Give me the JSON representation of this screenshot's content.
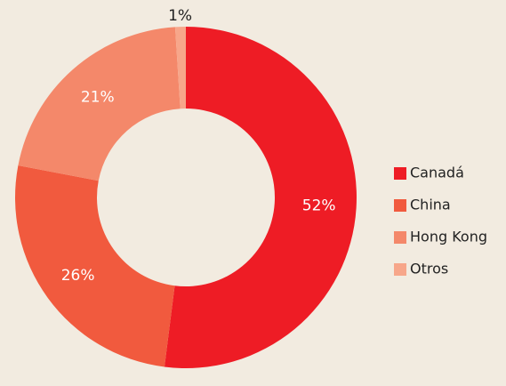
{
  "chart_data": {
    "type": "donut",
    "categories": [
      "Canadá",
      "China",
      "Hong Kong",
      "Otros"
    ],
    "values": [
      52,
      26,
      21,
      1
    ],
    "value_labels": [
      "52%",
      "26%",
      "21%",
      "1%"
    ],
    "colors": [
      "#ee1c25",
      "#f15a3e",
      "#f4886a",
      "#f7a68a"
    ],
    "legend": "right"
  }
}
